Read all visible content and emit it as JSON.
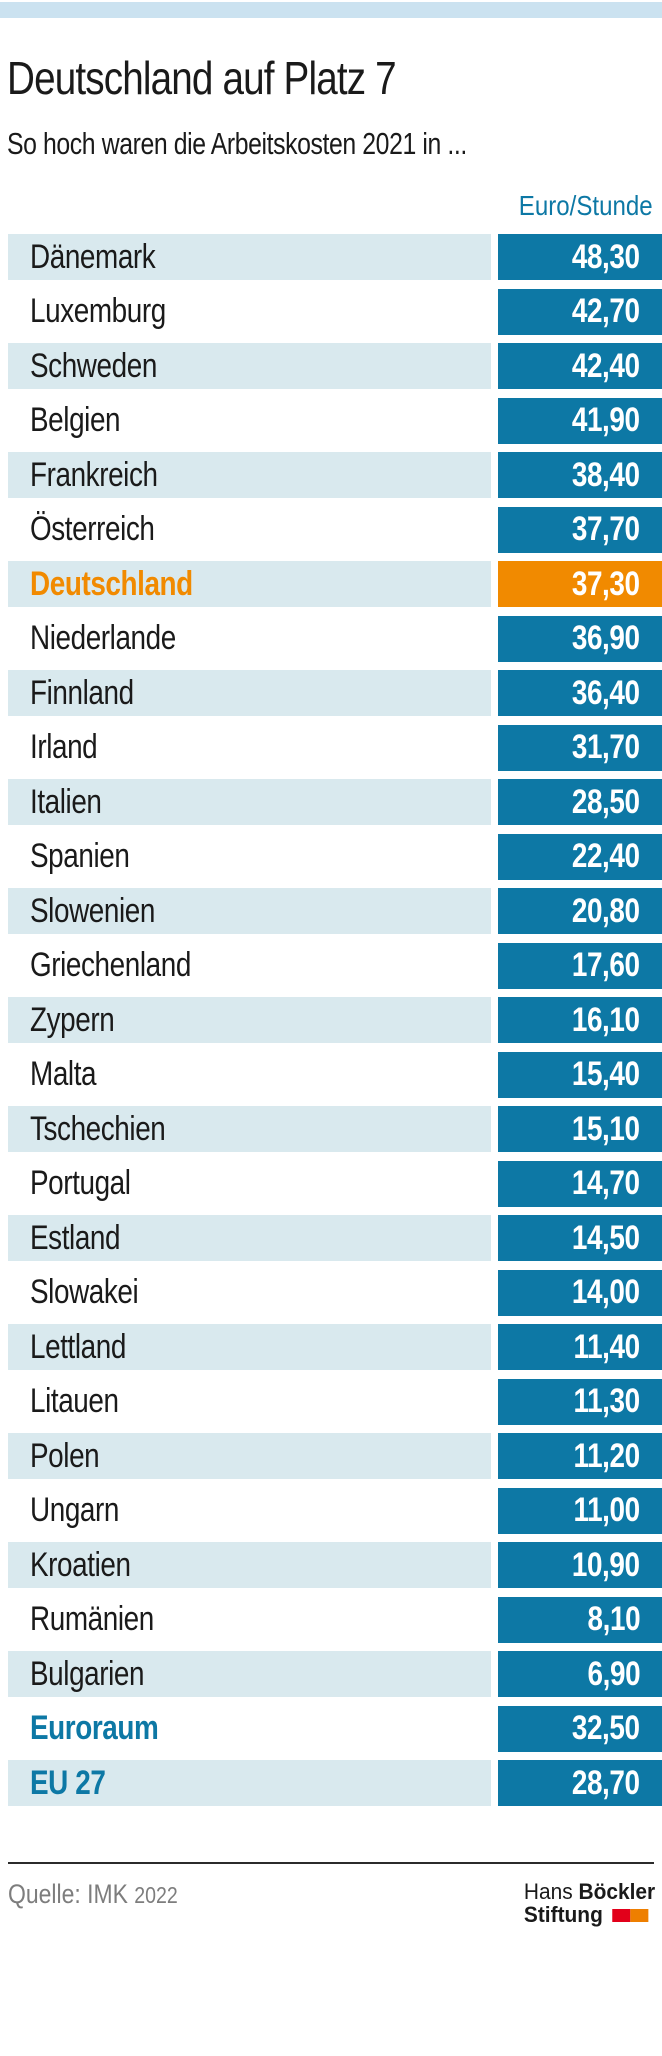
{
  "colors": {
    "accent_blue": "#0d78a5",
    "highlight_orange": "#f18a00",
    "row_alt_bg": "#d9e9ee",
    "top_bar_bg": "#cbe2f0",
    "text_dark": "#1a1a1a",
    "value_text": "#ffffff",
    "source_gray": "#7d7d7d",
    "logo_red": "#e2001a",
    "logo_orange": "#ee7f00",
    "divider": "#2b2b2b"
  },
  "chart_data": {
    "type": "table",
    "title": "Deutschland auf Platz 7",
    "subtitle": "So hoch waren die Arbeitskosten 2021 in ...",
    "unit": "Euro/Stunde",
    "highlighted_row": "Deutschland",
    "rows": [
      {
        "label": "Dänemark",
        "display": "48,30",
        "value": 48.3,
        "emphasis": ""
      },
      {
        "label": "Luxemburg",
        "display": "42,70",
        "value": 42.7,
        "emphasis": ""
      },
      {
        "label": "Schweden",
        "display": "42,40",
        "value": 42.4,
        "emphasis": ""
      },
      {
        "label": "Belgien",
        "display": "41,90",
        "value": 41.9,
        "emphasis": ""
      },
      {
        "label": "Frankreich",
        "display": "38,40",
        "value": 38.4,
        "emphasis": ""
      },
      {
        "label": "Österreich",
        "display": "37,70",
        "value": 37.7,
        "emphasis": ""
      },
      {
        "label": "Deutschland",
        "display": "37,30",
        "value": 37.3,
        "emphasis": "highlight"
      },
      {
        "label": "Niederlande",
        "display": "36,90",
        "value": 36.9,
        "emphasis": ""
      },
      {
        "label": "Finnland",
        "display": "36,40",
        "value": 36.4,
        "emphasis": ""
      },
      {
        "label": "Irland",
        "display": "31,70",
        "value": 31.7,
        "emphasis": ""
      },
      {
        "label": "Italien",
        "display": "28,50",
        "value": 28.5,
        "emphasis": ""
      },
      {
        "label": "Spanien",
        "display": "22,40",
        "value": 22.4,
        "emphasis": ""
      },
      {
        "label": "Slowenien",
        "display": "20,80",
        "value": 20.8,
        "emphasis": ""
      },
      {
        "label": "Griechenland",
        "display": "17,60",
        "value": 17.6,
        "emphasis": ""
      },
      {
        "label": "Zypern",
        "display": "16,10",
        "value": 16.1,
        "emphasis": ""
      },
      {
        "label": "Malta",
        "display": "15,40",
        "value": 15.4,
        "emphasis": ""
      },
      {
        "label": "Tschechien",
        "display": "15,10",
        "value": 15.1,
        "emphasis": ""
      },
      {
        "label": "Portugal",
        "display": "14,70",
        "value": 14.7,
        "emphasis": ""
      },
      {
        "label": "Estland",
        "display": "14,50",
        "value": 14.5,
        "emphasis": ""
      },
      {
        "label": "Slowakei",
        "display": "14,00",
        "value": 14.0,
        "emphasis": ""
      },
      {
        "label": "Lettland",
        "display": "11,40",
        "value": 11.4,
        "emphasis": ""
      },
      {
        "label": "Litauen",
        "display": "11,30",
        "value": 11.3,
        "emphasis": ""
      },
      {
        "label": "Polen",
        "display": "11,20",
        "value": 11.2,
        "emphasis": ""
      },
      {
        "label": "Ungarn",
        "display": "11,00",
        "value": 11.0,
        "emphasis": ""
      },
      {
        "label": "Kroatien",
        "display": "10,90",
        "value": 10.9,
        "emphasis": ""
      },
      {
        "label": "Rumänien",
        "display": "8,10",
        "value": 8.1,
        "emphasis": ""
      },
      {
        "label": "Bulgarien",
        "display": "6,90",
        "value": 6.9,
        "emphasis": ""
      },
      {
        "label": "Euroraum",
        "display": "32,50",
        "value": 32.5,
        "emphasis": "aggregate"
      },
      {
        "label": "EU 27",
        "display": "28,70",
        "value": 28.7,
        "emphasis": "aggregate"
      }
    ]
  },
  "footer": {
    "source": "Quelle: IMK",
    "year": "2022",
    "logo": {
      "name_regular": "Hans",
      "name_bold": "Böckler",
      "line2": "Stiftung"
    }
  }
}
